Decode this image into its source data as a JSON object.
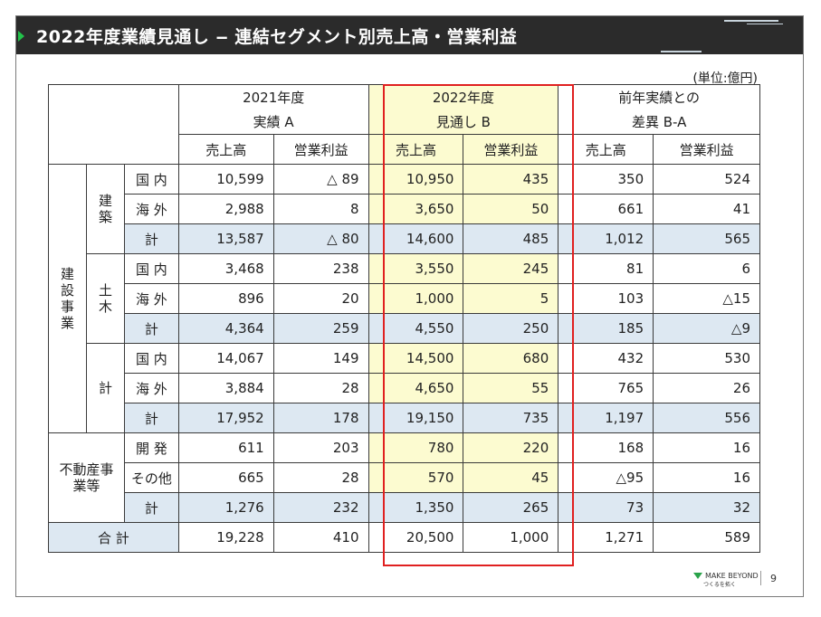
{
  "title": "2022年度業績見通し ‒ 連結セグメント別売上高・営業利益",
  "unit": "(単位:億円)",
  "headers": {
    "col2021_line1": "2021年度",
    "col2021_line2": "実績 A",
    "col2022_line1": "2022年度",
    "col2022_line2": "見通し B",
    "diff_line1": "前年実績との",
    "diff_line2": "差異 B-A",
    "sales": "売上高",
    "profit": "営業利益"
  },
  "groups": {
    "construction_business": "建設事業",
    "building": "建築",
    "civil": "土木",
    "subtotal_kei": "計",
    "real_estate": "不動産事業等",
    "total": "合 計"
  },
  "rows": [
    {
      "label": "国 内",
      "a_sales": "10,599",
      "a_profit": "△ 89",
      "b_sales": "10,950",
      "b_profit": "435",
      "d_sales": "350",
      "d_profit": "524"
    },
    {
      "label": "海 外",
      "a_sales": "2,988",
      "a_profit": "8",
      "b_sales": "3,650",
      "b_profit": "50",
      "d_sales": "661",
      "d_profit": "41"
    },
    {
      "label": "計",
      "a_sales": "13,587",
      "a_profit": "△ 80",
      "b_sales": "14,600",
      "b_profit": "485",
      "d_sales": "1,012",
      "d_profit": "565"
    },
    {
      "label": "国 内",
      "a_sales": "3,468",
      "a_profit": "238",
      "b_sales": "3,550",
      "b_profit": "245",
      "d_sales": "81",
      "d_profit": "6"
    },
    {
      "label": "海 外",
      "a_sales": "896",
      "a_profit": "20",
      "b_sales": "1,000",
      "b_profit": "5",
      "d_sales": "103",
      "d_profit": "△15"
    },
    {
      "label": "計",
      "a_sales": "4,364",
      "a_profit": "259",
      "b_sales": "4,550",
      "b_profit": "250",
      "d_sales": "185",
      "d_profit": "△9"
    },
    {
      "label": "国 内",
      "a_sales": "14,067",
      "a_profit": "149",
      "b_sales": "14,500",
      "b_profit": "680",
      "d_sales": "432",
      "d_profit": "530"
    },
    {
      "label": "海 外",
      "a_sales": "3,884",
      "a_profit": "28",
      "b_sales": "4,650",
      "b_profit": "55",
      "d_sales": "765",
      "d_profit": "26"
    },
    {
      "label": "計",
      "a_sales": "17,952",
      "a_profit": "178",
      "b_sales": "19,150",
      "b_profit": "735",
      "d_sales": "1,197",
      "d_profit": "556"
    },
    {
      "label": "開 発",
      "a_sales": "611",
      "a_profit": "203",
      "b_sales": "780",
      "b_profit": "220",
      "d_sales": "168",
      "d_profit": "16"
    },
    {
      "label": "その他",
      "a_sales": "665",
      "a_profit": "28",
      "b_sales": "570",
      "b_profit": "45",
      "d_sales": "△95",
      "d_profit": "16"
    },
    {
      "label": "計",
      "a_sales": "1,276",
      "a_profit": "232",
      "b_sales": "1,350",
      "b_profit": "265",
      "d_sales": "73",
      "d_profit": "32"
    },
    {
      "label": "合 計",
      "a_sales": "19,228",
      "a_profit": "410",
      "b_sales": "20,500",
      "b_profit": "1,000",
      "d_sales": "1,271",
      "d_profit": "589"
    }
  ],
  "footer": {
    "logo_text": "MAKE BEYOND",
    "logo_sub": "つくるを拓く",
    "page": "9"
  },
  "colors": {
    "title_bar": "#2b2b2b",
    "accent_green": "#22c24a",
    "highlight_yellow": "#fcfbd0",
    "subtotal_blue": "#dde8f2",
    "focus_border": "#e02020"
  }
}
